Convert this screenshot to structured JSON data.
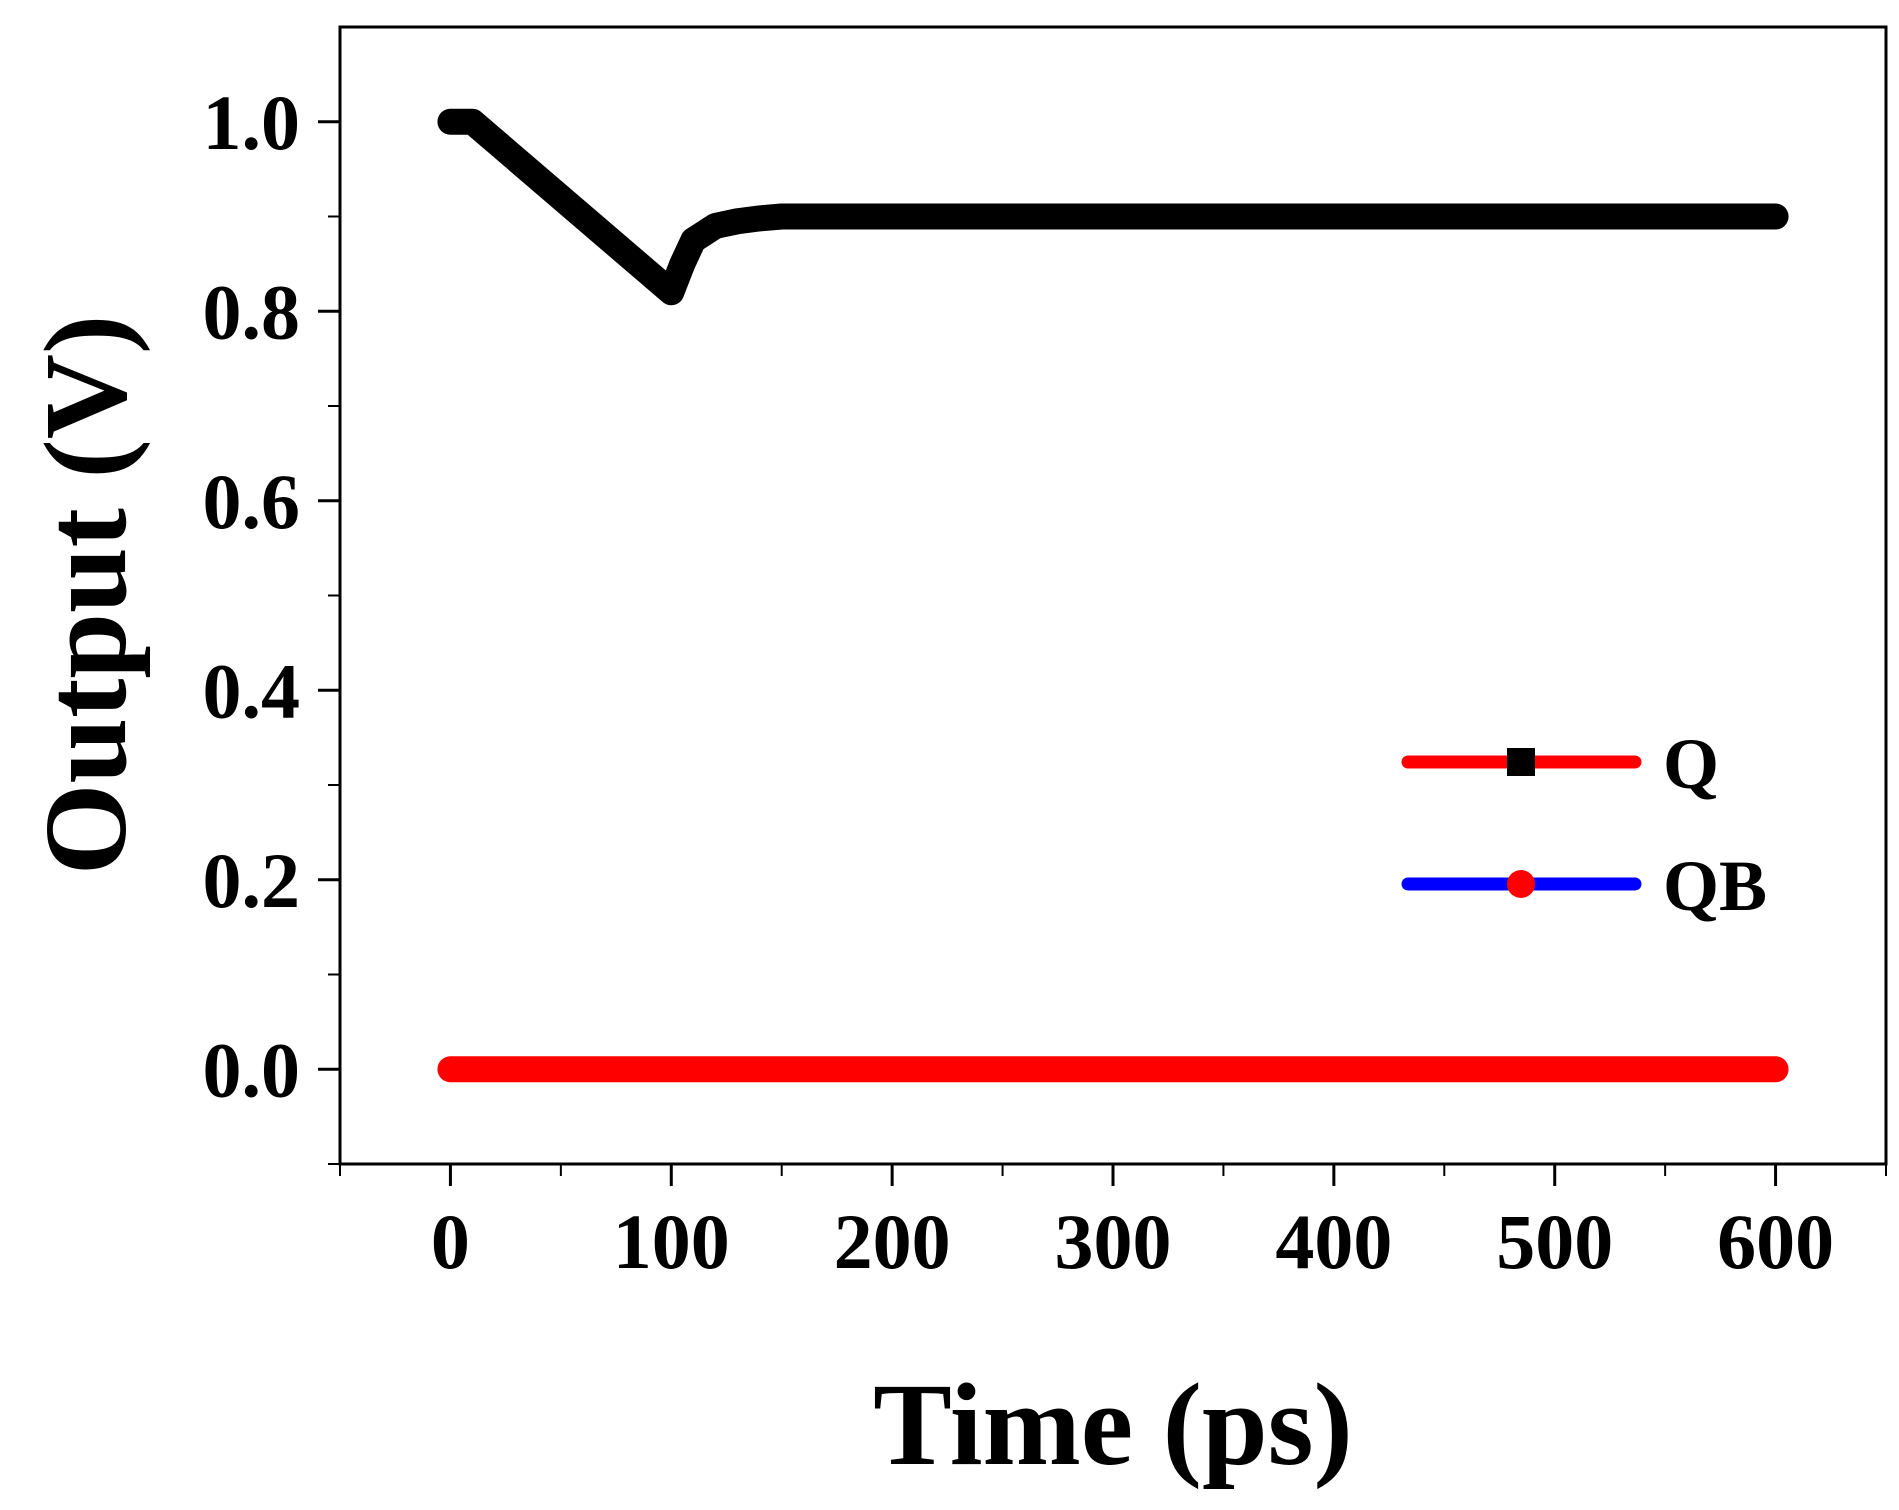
{
  "chart_data": {
    "type": "line",
    "xlabel": "Time (ps)",
    "ylabel": "Output (V)",
    "xlim": [
      -50,
      650
    ],
    "ylim": [
      -0.1,
      1.1
    ],
    "xticks": [
      0,
      100,
      200,
      300,
      400,
      500,
      600
    ],
    "xtick_labels": [
      "0",
      "100",
      "200",
      "300",
      "400",
      "500",
      "600"
    ],
    "yticks": [
      0.0,
      0.2,
      0.4,
      0.6,
      0.8,
      1.0
    ],
    "ytick_labels": [
      "0.0",
      "0.2",
      "0.4",
      "0.6",
      "0.8",
      "1.0"
    ],
    "grid": false,
    "legend_position": "right",
    "series": [
      {
        "name": "Q",
        "line_color": "#000000",
        "legend_line_color": "#ff0000",
        "marker": "square",
        "marker_color": "#000000",
        "x": [
          0,
          10,
          100,
          105,
          110,
          120,
          130,
          140,
          150,
          200,
          300,
          400,
          500,
          600
        ],
        "y": [
          1.0,
          1.0,
          0.82,
          0.85,
          0.875,
          0.89,
          0.895,
          0.898,
          0.9,
          0.9,
          0.9,
          0.9,
          0.9,
          0.9
        ]
      },
      {
        "name": "QB",
        "line_color": "#ff0000",
        "legend_line_color": "#0000ff",
        "marker": "circle",
        "marker_color": "#ff0000",
        "x": [
          0,
          100,
          200,
          300,
          400,
          500,
          600
        ],
        "y": [
          0.0,
          0.0,
          0.0,
          0.0,
          0.0,
          0.0,
          0.0
        ]
      }
    ]
  }
}
